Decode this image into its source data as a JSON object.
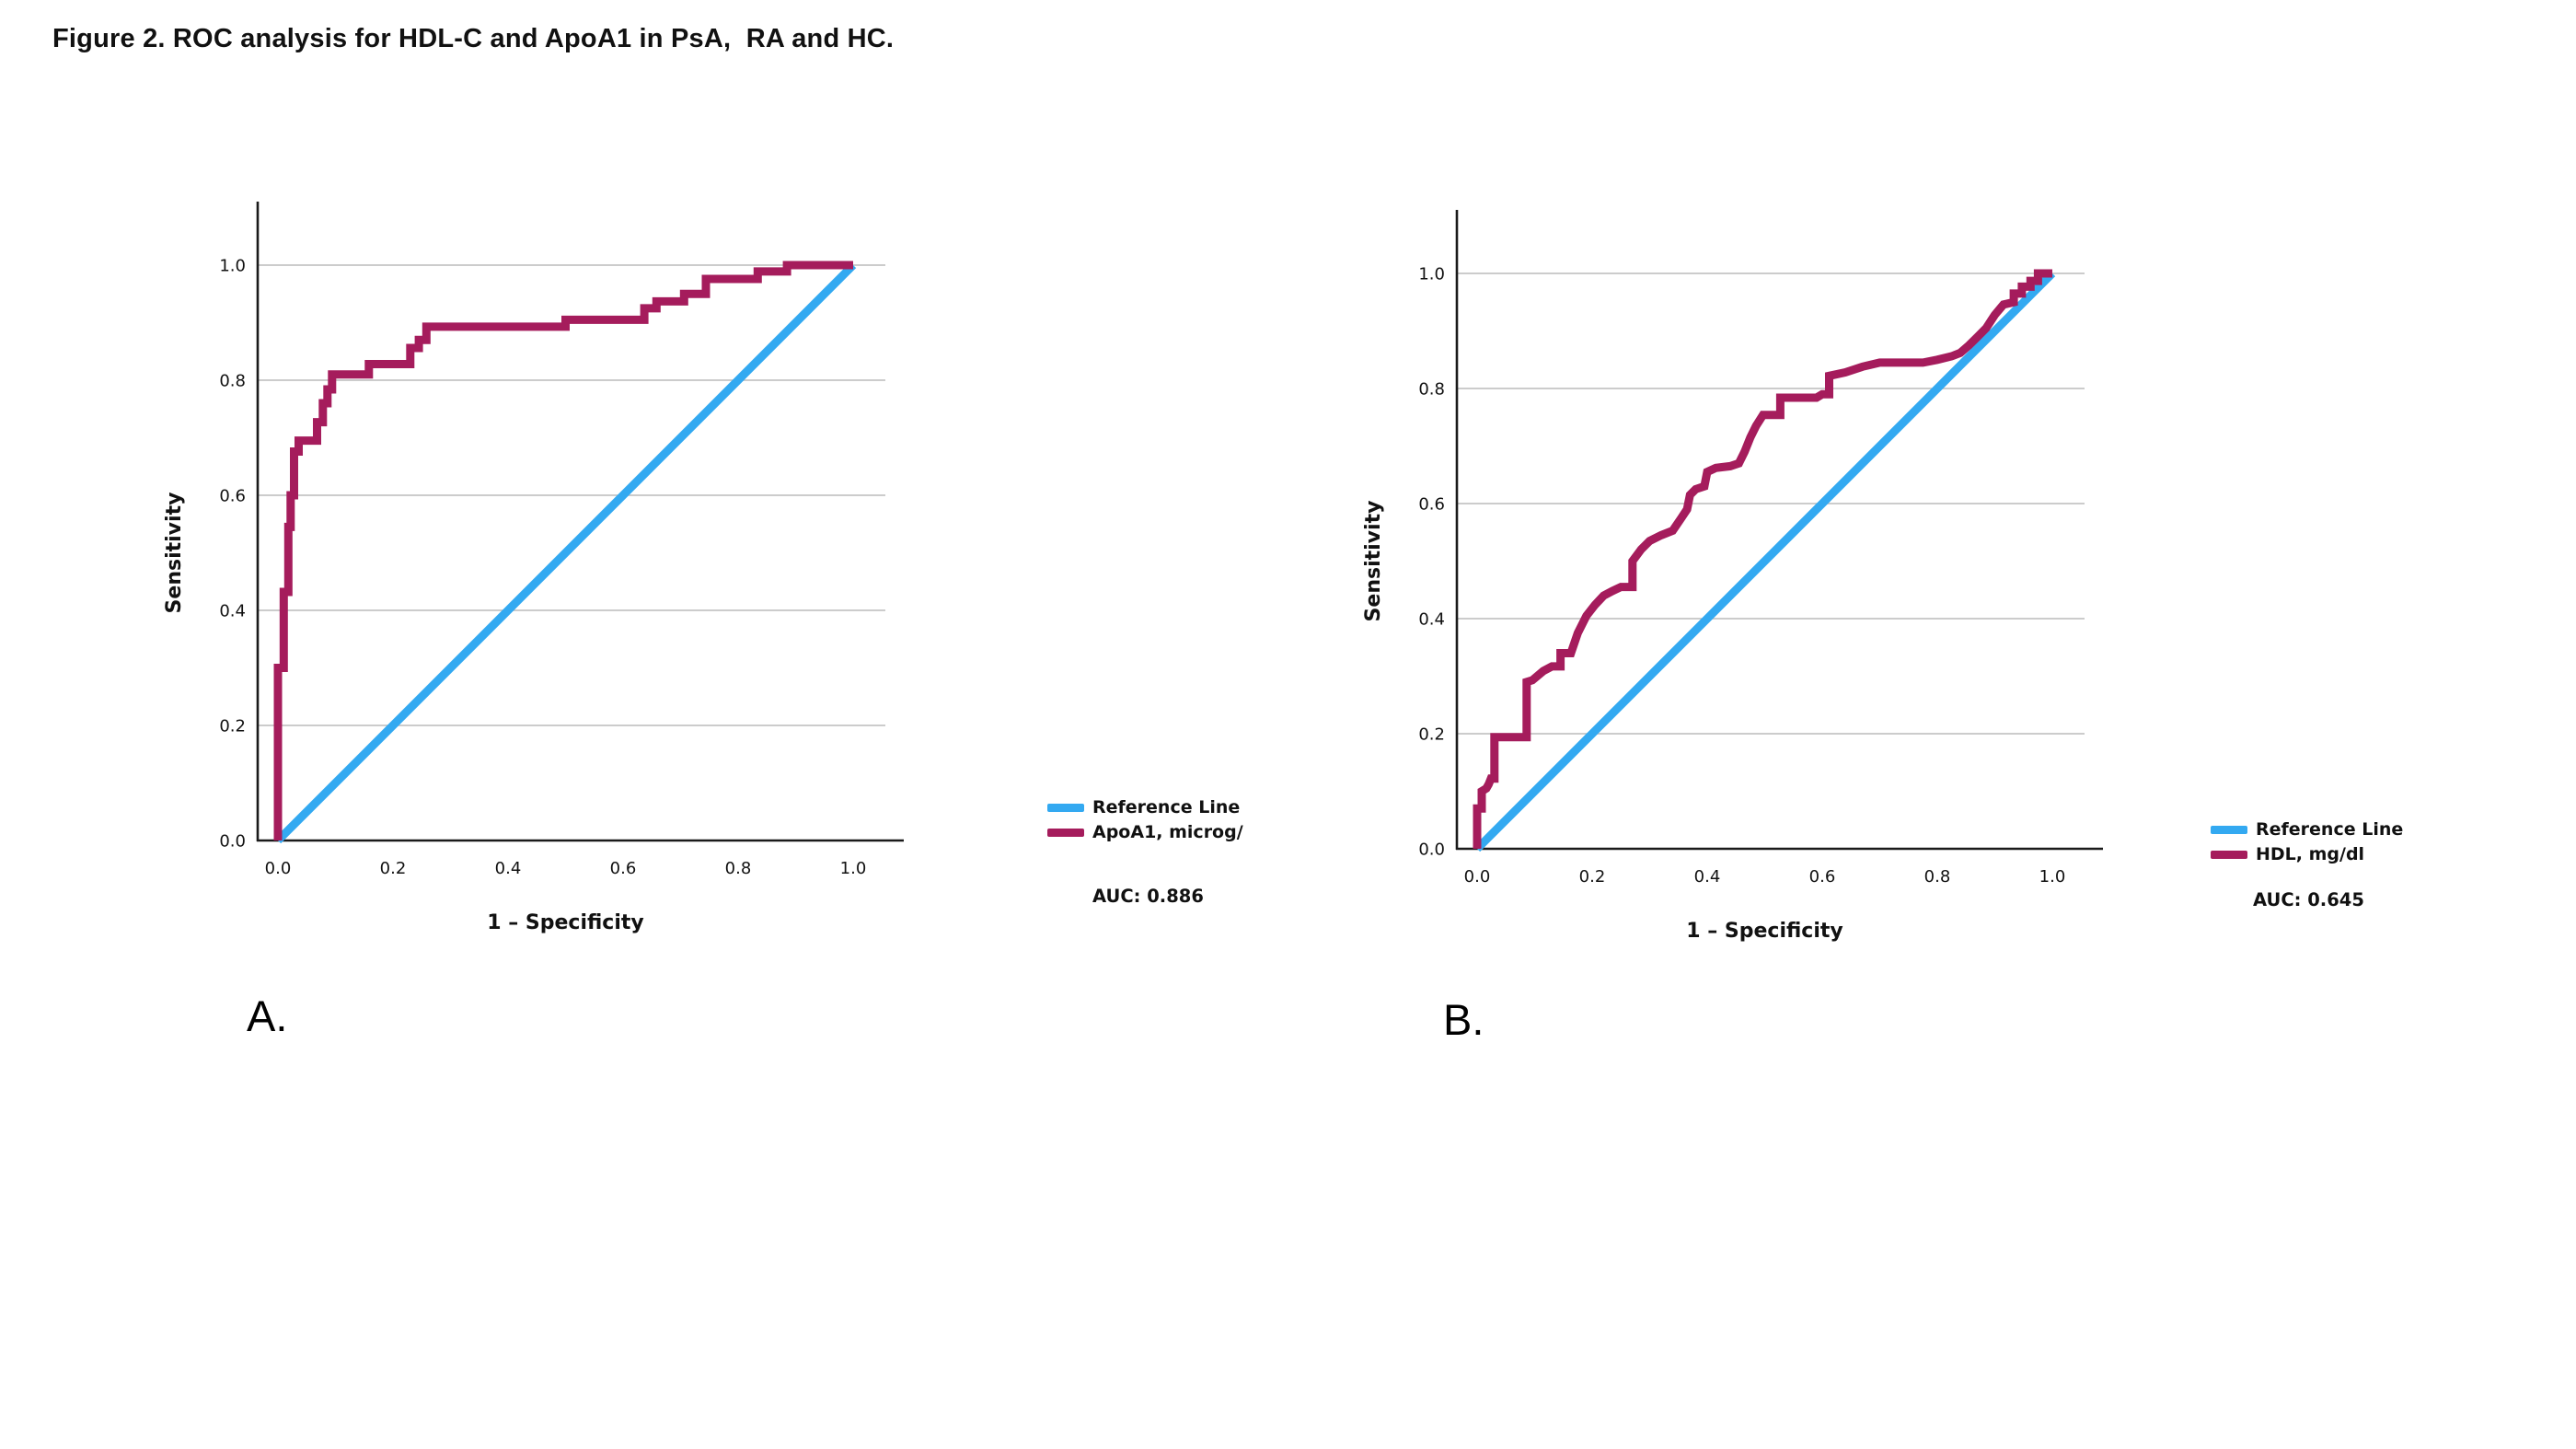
{
  "title": "Figure 2. ROC analysis for HDL-C and ApoA1 in PsA,  RA and HC.",
  "panels": [
    {
      "label": "A.",
      "auc_text": "AUC: 0.886",
      "legend": [
        {
          "label": "Reference Line",
          "color": "#33A9F1"
        },
        {
          "label": "ApoA1, microg/",
          "color": "#A51C5C"
        }
      ]
    },
    {
      "label": "B.",
      "auc_text": "AUC: 0.645",
      "legend": [
        {
          "label": "Reference Line",
          "color": "#33A9F1"
        },
        {
          "label": "HDL, mg/dl",
          "color": "#A51C5C"
        }
      ]
    }
  ],
  "chart_data": [
    {
      "type": "line",
      "title": "",
      "xlabel": "1 – Specificity",
      "ylabel": "Sensitivity",
      "xlim": [
        0,
        1
      ],
      "ylim": [
        0,
        1
      ],
      "x_ticks": [
        "0.0",
        "0.2",
        "0.4",
        "0.6",
        "0.8",
        "1.0"
      ],
      "y_ticks": [
        "0.0",
        "0.2",
        "0.4",
        "0.6",
        "0.8",
        "1.0"
      ],
      "grid": "horizontal",
      "grid_color": "#BCBCBC",
      "axis_color": "#1A1A1A",
      "legend_position": "right",
      "series": [
        {
          "name": "Reference Line",
          "color": "#33A9F1",
          "points": [
            [
              0,
              0
            ],
            [
              1,
              1
            ]
          ]
        },
        {
          "name": "ApoA1, microg/",
          "color": "#A51C5C",
          "auc": 0.886,
          "points": [
            [
              0,
              0
            ],
            [
              0,
              0.3
            ],
            [
              0.01,
              0.3
            ],
            [
              0.01,
              0.432
            ],
            [
              0.018,
              0.432
            ],
            [
              0.018,
              0.545
            ],
            [
              0.022,
              0.545
            ],
            [
              0.022,
              0.6
            ],
            [
              0.028,
              0.6
            ],
            [
              0.028,
              0.676
            ],
            [
              0.036,
              0.676
            ],
            [
              0.036,
              0.695
            ],
            [
              0.068,
              0.695
            ],
            [
              0.068,
              0.727
            ],
            [
              0.078,
              0.727
            ],
            [
              0.078,
              0.76
            ],
            [
              0.086,
              0.76
            ],
            [
              0.086,
              0.784
            ],
            [
              0.094,
              0.784
            ],
            [
              0.094,
              0.81
            ],
            [
              0.158,
              0.81
            ],
            [
              0.158,
              0.828
            ],
            [
              0.23,
              0.828
            ],
            [
              0.23,
              0.856
            ],
            [
              0.245,
              0.856
            ],
            [
              0.245,
              0.87
            ],
            [
              0.258,
              0.87
            ],
            [
              0.258,
              0.893
            ],
            [
              0.5,
              0.893
            ],
            [
              0.5,
              0.905
            ],
            [
              0.637,
              0.905
            ],
            [
              0.637,
              0.925
            ],
            [
              0.658,
              0.925
            ],
            [
              0.658,
              0.937
            ],
            [
              0.706,
              0.937
            ],
            [
              0.706,
              0.95
            ],
            [
              0.744,
              0.95
            ],
            [
              0.744,
              0.976
            ],
            [
              0.834,
              0.976
            ],
            [
              0.834,
              0.989
            ],
            [
              0.885,
              0.989
            ],
            [
              0.885,
              1
            ],
            [
              1,
              1
            ]
          ]
        }
      ]
    },
    {
      "type": "line",
      "title": "",
      "xlabel": "1 – Specificity",
      "ylabel": "Sensitivity",
      "xlim": [
        0,
        1
      ],
      "ylim": [
        0,
        1
      ],
      "x_ticks": [
        "0.0",
        "0.2",
        "0.4",
        "0.6",
        "0.8",
        "1.0"
      ],
      "y_ticks": [
        "0.0",
        "0.2",
        "0.4",
        "0.6",
        "0.8",
        "1.0"
      ],
      "grid": "horizontal",
      "grid_color": "#BCBCBC",
      "axis_color": "#1A1A1A",
      "legend_position": "right",
      "series": [
        {
          "name": "Reference Line",
          "color": "#33A9F1",
          "points": [
            [
              0,
              0
            ],
            [
              1,
              1
            ]
          ]
        },
        {
          "name": "HDL, mg/dl",
          "color": "#A51C5C",
          "auc": 0.645,
          "points": [
            [
              0,
              0
            ],
            [
              0,
              0.07
            ],
            [
              0.008,
              0.07
            ],
            [
              0.008,
              0.1
            ],
            [
              0.016,
              0.105
            ],
            [
              0.02,
              0.112
            ],
            [
              0.024,
              0.122
            ],
            [
              0.03,
              0.122
            ],
            [
              0.03,
              0.194
            ],
            [
              0.086,
              0.194
            ],
            [
              0.086,
              0.29
            ],
            [
              0.096,
              0.293
            ],
            [
              0.115,
              0.309
            ],
            [
              0.13,
              0.317
            ],
            [
              0.145,
              0.317
            ],
            [
              0.145,
              0.34
            ],
            [
              0.163,
              0.34
            ],
            [
              0.175,
              0.375
            ],
            [
              0.19,
              0.405
            ],
            [
              0.205,
              0.424
            ],
            [
              0.22,
              0.44
            ],
            [
              0.235,
              0.448
            ],
            [
              0.25,
              0.455
            ],
            [
              0.27,
              0.455
            ],
            [
              0.27,
              0.5
            ],
            [
              0.285,
              0.52
            ],
            [
              0.3,
              0.535
            ],
            [
              0.32,
              0.545
            ],
            [
              0.34,
              0.553
            ],
            [
              0.355,
              0.575
            ],
            [
              0.365,
              0.59
            ],
            [
              0.37,
              0.615
            ],
            [
              0.38,
              0.625
            ],
            [
              0.395,
              0.63
            ],
            [
              0.4,
              0.655
            ],
            [
              0.415,
              0.662
            ],
            [
              0.44,
              0.665
            ],
            [
              0.455,
              0.67
            ],
            [
              0.465,
              0.69
            ],
            [
              0.475,
              0.715
            ],
            [
              0.485,
              0.735
            ],
            [
              0.497,
              0.754
            ],
            [
              0.527,
              0.754
            ],
            [
              0.527,
              0.784
            ],
            [
              0.59,
              0.784
            ],
            [
              0.6,
              0.79
            ],
            [
              0.612,
              0.79
            ],
            [
              0.612,
              0.822
            ],
            [
              0.64,
              0.828
            ],
            [
              0.67,
              0.838
            ],
            [
              0.7,
              0.845
            ],
            [
              0.775,
              0.845
            ],
            [
              0.8,
              0.85
            ],
            [
              0.825,
              0.856
            ],
            [
              0.84,
              0.862
            ],
            [
              0.855,
              0.875
            ],
            [
              0.87,
              0.89
            ],
            [
              0.885,
              0.905
            ],
            [
              0.9,
              0.928
            ],
            [
              0.915,
              0.946
            ],
            [
              0.933,
              0.95
            ],
            [
              0.933,
              0.965
            ],
            [
              0.947,
              0.965
            ],
            [
              0.947,
              0.977
            ],
            [
              0.962,
              0.977
            ],
            [
              0.962,
              0.987
            ],
            [
              0.975,
              0.987
            ],
            [
              0.975,
              1
            ],
            [
              1,
              1
            ]
          ]
        }
      ]
    }
  ]
}
